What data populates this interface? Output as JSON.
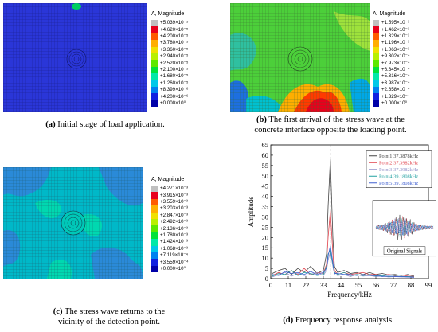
{
  "panels": [
    {
      "legend_title": "A, Magnitude",
      "legend_values": [
        "+5.039×10⁻⁵",
        "+4.620×10⁻⁵",
        "+4.200×10⁻⁵",
        "+3.780×10⁻⁵",
        "+3.360×10⁻⁵",
        "+2.940×10⁻⁵",
        "+2.520×10⁻⁵",
        "+2.100×10⁻⁵",
        "+1.680×10⁻⁵",
        "+1.260×10⁻⁵",
        "+8.399×10⁻⁶",
        "+4.200×10⁻⁶",
        "+0.000×10⁰"
      ],
      "caption_label": "(a)",
      "caption_text": "Initial stage of load application."
    },
    {
      "legend_title": "A, Magnitude",
      "legend_values": [
        "+1.595×10⁻³",
        "+1.462×10⁻³",
        "+1.329×10⁻³",
        "+1.196×10⁻³",
        "+1.063×10⁻³",
        "+9.302×10⁻⁴",
        "+7.973×10⁻⁴",
        "+6.645×10⁻⁴",
        "+5.316×10⁻⁴",
        "+3.987×10⁻⁴",
        "+2.658×10⁻⁴",
        "+1.329×10⁻⁴",
        "+0.000×10⁰"
      ],
      "caption_label": "(b)",
      "caption_text_1": "The first arrival of the stress wave at the",
      "caption_text_2": "concrete interface opposite the loading point."
    },
    {
      "legend_title": "A, Magnitude",
      "legend_values": [
        "+4.271×10⁻³",
        "+3.915×10⁻³",
        "+3.559×10⁻³",
        "+3.203×10⁻³",
        "+2.847×10⁻³",
        "+2.492×10⁻³",
        "+2.136×10⁻³",
        "+1.780×10⁻³",
        "+1.424×10⁻³",
        "+1.068×10⁻³",
        "+7.119×10⁻⁴",
        "+3.559×10⁻⁴",
        "+0.000×10⁰"
      ],
      "caption_label": "(c)",
      "caption_text_1": "The stress wave returns to the",
      "caption_text_2": "vicinity of the detection point."
    },
    {
      "caption_label": "(d)",
      "caption_text": "Frequency response analysis."
    }
  ],
  "legend_colors": [
    "#c0c0c0",
    "#e8001c",
    "#ff5a00",
    "#ffae00",
    "#f0e000",
    "#b8ef00",
    "#5ce800",
    "#00e23a",
    "#00e8a8",
    "#00c8e8",
    "#0080f0",
    "#1020e0",
    "#0000a8"
  ],
  "chart_data": {
    "type": "line",
    "xlabel": "Frequency/kHz",
    "ylabel": "Amplitude",
    "xlim": [
      0,
      99
    ],
    "ylim": [
      0,
      65
    ],
    "xticks": [
      0,
      11,
      22,
      33,
      44,
      55,
      66,
      77,
      88,
      99
    ],
    "yticks": [
      0,
      5,
      10,
      15,
      20,
      25,
      30,
      35,
      40,
      45,
      50,
      55,
      60,
      65
    ],
    "vline_x": 37.4,
    "series": [
      {
        "name": "Point1:37.3878kHz",
        "color": "#444444",
        "x": [
          1,
          5,
          9,
          13,
          17,
          21,
          25,
          29,
          33,
          35,
          36,
          37.4,
          39,
          40,
          42,
          46,
          50,
          54,
          58,
          62,
          66,
          70,
          74,
          78,
          82,
          86,
          90
        ],
        "y": [
          2.5,
          4,
          5,
          2,
          5,
          3,
          6,
          2.5,
          4,
          12,
          35,
          58,
          20,
          6,
          3,
          4,
          2.5,
          3,
          2,
          3,
          2,
          2.5,
          1.8,
          2,
          1.5,
          2,
          1.2
        ]
      },
      {
        "name": "Point2:37.3982kHz",
        "color": "#e0404a",
        "x": [
          1,
          5,
          9,
          13,
          17,
          21,
          25,
          29,
          33,
          35,
          36,
          37.4,
          39,
          40,
          42,
          46,
          50,
          54,
          58,
          62,
          66,
          70,
          74,
          78,
          82,
          86,
          90
        ],
        "y": [
          1.5,
          3,
          1.8,
          4,
          2,
          5,
          1.8,
          3,
          2.5,
          7,
          20,
          33,
          12,
          4,
          2,
          3,
          2,
          2.5,
          3,
          2,
          2,
          1.5,
          2,
          1.5,
          1.8,
          1.2,
          1
        ]
      },
      {
        "name": "Point3:37.3982kHz",
        "color": "#9090c8",
        "x": [
          1,
          5,
          9,
          13,
          17,
          21,
          25,
          29,
          33,
          35,
          36,
          37.4,
          39,
          40,
          42,
          46,
          50,
          54,
          58,
          62,
          66,
          70,
          74,
          78,
          82,
          86,
          90
        ],
        "y": [
          0.8,
          2,
          3,
          1.2,
          2.5,
          1.5,
          2,
          3,
          1.5,
          4,
          9,
          13,
          6,
          2,
          1.5,
          2,
          1,
          2,
          1.2,
          1.5,
          1,
          1.2,
          0.8,
          1,
          0.8,
          0.8,
          0.6
        ]
      },
      {
        "name": "Point4:39.1808kHz",
        "color": "#20a0a0",
        "x": [
          1,
          5,
          9,
          13,
          17,
          21,
          25,
          29,
          33,
          35,
          36,
          37.4,
          39,
          40,
          42,
          46,
          50,
          54,
          58,
          62,
          66,
          70,
          74,
          78,
          82,
          86,
          90
        ],
        "y": [
          1.2,
          2.5,
          2,
          4,
          1.5,
          3,
          2.5,
          1.5,
          2,
          6,
          12,
          14,
          7,
          3,
          2,
          3,
          1.5,
          2,
          1.5,
          2,
          1.2,
          1.5,
          1,
          1.2,
          1,
          1,
          0.8
        ]
      },
      {
        "name": "Point5:39.1808kHz",
        "color": "#4060d0",
        "x": [
          1,
          5,
          9,
          13,
          17,
          21,
          25,
          29,
          33,
          35,
          36,
          37.4,
          39,
          40,
          42,
          46,
          50,
          54,
          58,
          62,
          66,
          70,
          74,
          78,
          82,
          86,
          90
        ],
        "y": [
          2,
          1.5,
          3.5,
          2.5,
          3,
          2,
          3.5,
          2,
          3,
          5,
          11,
          16,
          8,
          2.5,
          2.5,
          2,
          2,
          1.5,
          2,
          1.5,
          1.5,
          1,
          1.2,
          1,
          1,
          0.8,
          0.7
        ]
      }
    ],
    "inset_label": "Original Signals"
  }
}
